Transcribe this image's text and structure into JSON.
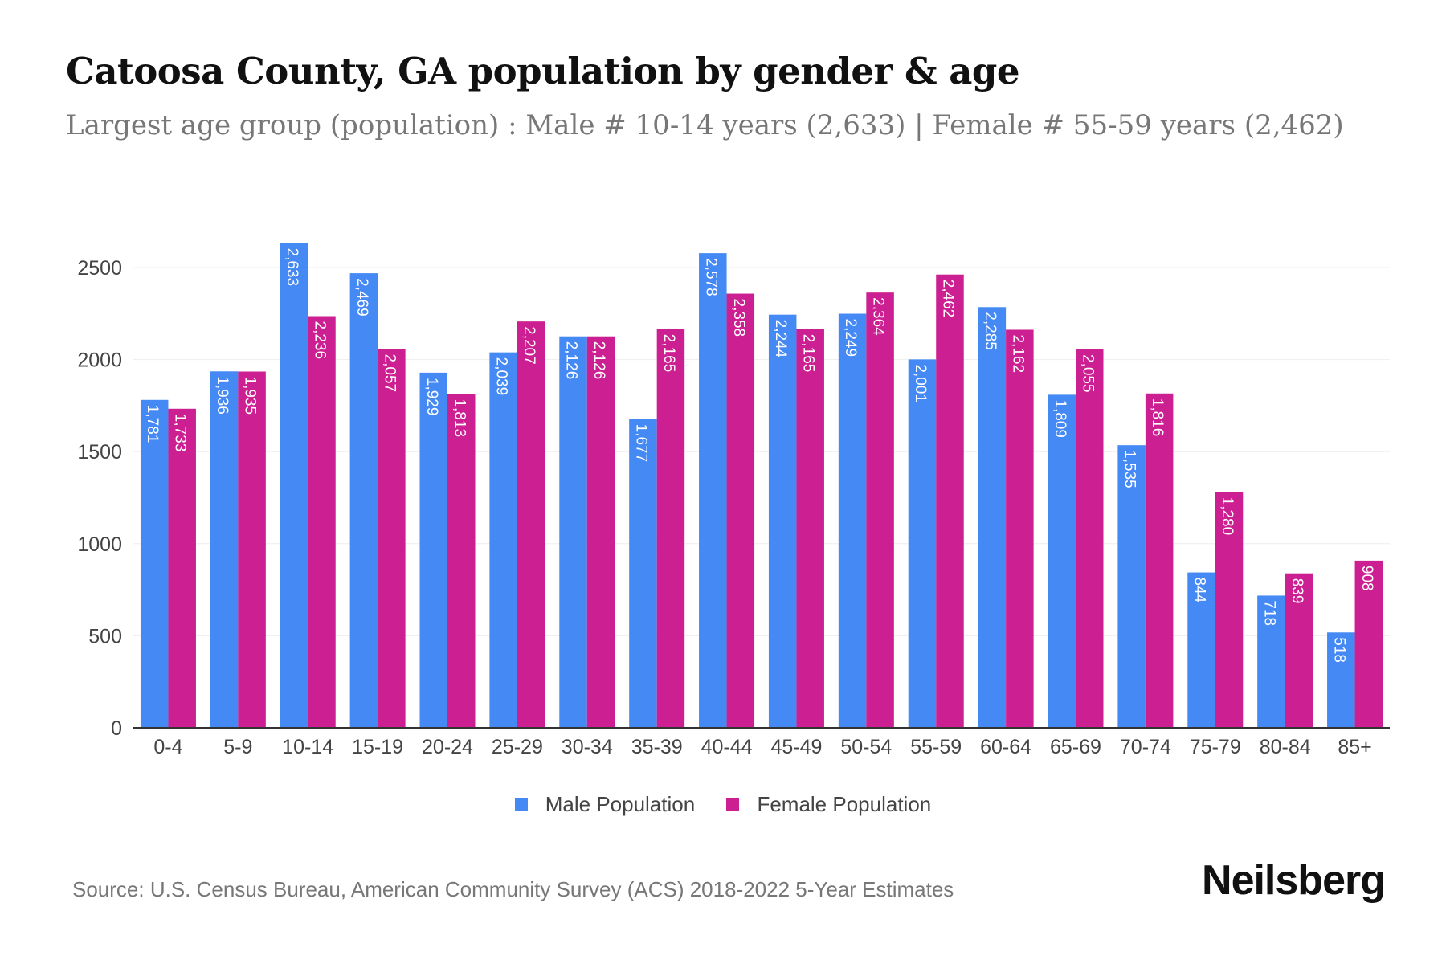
{
  "title": "Catoosa County, GA population by gender & age",
  "subtitle": "Largest age group (population) : Male # 10-14 years (2,633) | Female # 55-59 years (2,462)",
  "source": "Source: U.S. Census Bureau, American Community Survey (ACS) 2018-2022 5-Year Estimates",
  "brand": "Neilsberg",
  "legend": {
    "male": "Male Population",
    "female": "Female Population"
  },
  "colors": {
    "male": "#4589f5",
    "female": "#cc1f92",
    "grid": "#eeeeee",
    "axis": "#333333"
  },
  "chart_data": {
    "type": "bar",
    "categories": [
      "0-4",
      "5-9",
      "10-14",
      "15-19",
      "20-24",
      "25-29",
      "30-34",
      "35-39",
      "40-44",
      "45-49",
      "50-54",
      "55-59",
      "60-64",
      "65-69",
      "70-74",
      "75-79",
      "80-84",
      "85+"
    ],
    "series": [
      {
        "name": "Male Population",
        "values": [
          1781,
          1936,
          2633,
          2469,
          1929,
          2039,
          2126,
          1677,
          2578,
          2244,
          2249,
          2001,
          2285,
          1809,
          1535,
          844,
          718,
          518
        ],
        "labels": [
          "1,781",
          "1,936",
          "2,633",
          "2,469",
          "1,929",
          "2,039",
          "2,126",
          "1,677",
          "2,578",
          "2,244",
          "2,249",
          "2,001",
          "2,285",
          "1,809",
          "1,535",
          "844",
          "718",
          "518"
        ]
      },
      {
        "name": "Female Population",
        "values": [
          1733,
          1935,
          2236,
          2057,
          1813,
          2207,
          2126,
          2165,
          2358,
          2165,
          2364,
          2462,
          2162,
          2055,
          1816,
          1280,
          839,
          908
        ],
        "labels": [
          "1,733",
          "1,935",
          "2,236",
          "2,057",
          "1,813",
          "2,207",
          "2,126",
          "2,165",
          "2,358",
          "2,165",
          "2,364",
          "2,462",
          "2,162",
          "2,055",
          "1,816",
          "1,280",
          "839",
          "908"
        ]
      }
    ],
    "ylim": [
      0,
      2500
    ],
    "yticks": [
      0,
      500,
      1000,
      1500,
      2000,
      2500
    ],
    "grid": true,
    "legend_position": "bottom"
  }
}
